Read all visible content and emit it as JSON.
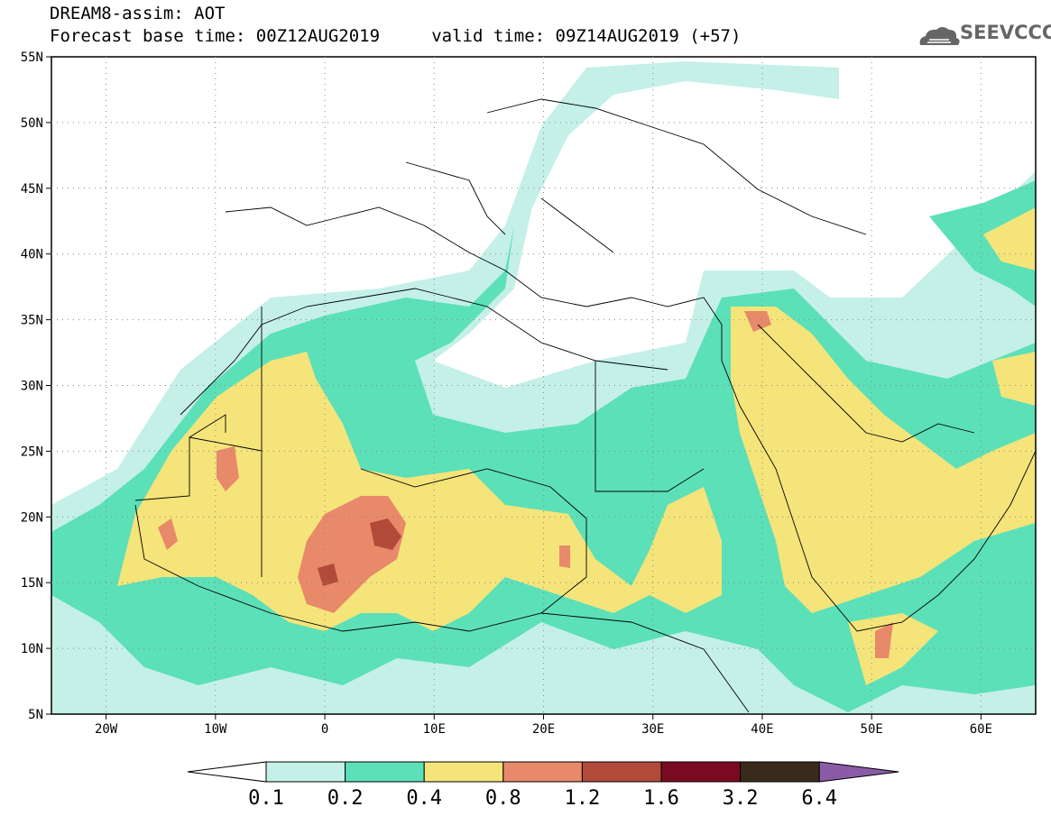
{
  "header": {
    "line1": "DREAM8-assim: AOT",
    "line2": "Forecast base time: 00Z12AUG2019     valid time: 09Z14AUG2019 (+57)"
  },
  "logo": {
    "text": "SEEVCCC",
    "icon": "cloud-icon"
  },
  "map": {
    "lon_range": [
      -25,
      65
    ],
    "lat_range": [
      5,
      55
    ],
    "lat_ticks": [
      "5N",
      "10N",
      "15N",
      "20N",
      "25N",
      "30N",
      "35N",
      "40N",
      "45N",
      "50N",
      "55N"
    ],
    "lon_ticks": [
      "20W",
      "10W",
      "0",
      "10E",
      "20E",
      "30E",
      "40E",
      "50E",
      "60E"
    ],
    "grid": "dotted"
  },
  "colorbar": {
    "labels": [
      "0.1",
      "0.2",
      "0.4",
      "0.8",
      "1.2",
      "1.6",
      "3.2",
      "6.4"
    ],
    "colors": [
      "#c4f0e8",
      "#5ce0b8",
      "#f5e47a",
      "#e8896a",
      "#b24a3a",
      "#7a0a22",
      "#3a2a1a",
      "#8a5ca8"
    ],
    "underflow_color": "#ffffff"
  }
}
